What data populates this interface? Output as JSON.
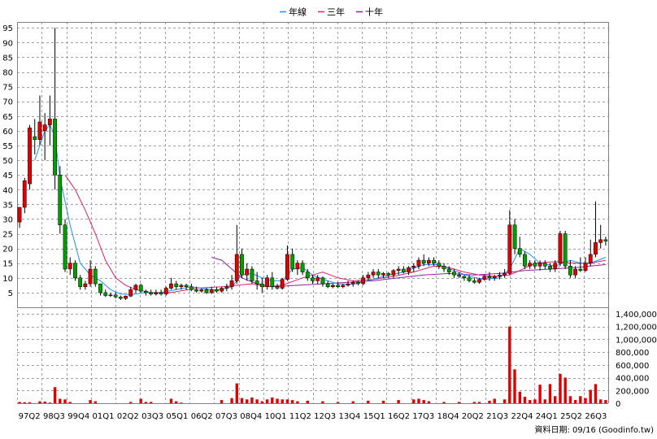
{
  "chart_data": {
    "type": "candlestick",
    "legend": [
      {
        "label": "年線",
        "color": "#1e90ff"
      },
      {
        "label": "三年",
        "color": "#e0206a"
      },
      {
        "label": "十年",
        "color": "#9020a0"
      }
    ],
    "legend_position": "top-center",
    "grid": true,
    "price_axis": {
      "ylim": [
        0,
        97
      ],
      "ticks": [
        5,
        10,
        15,
        20,
        25,
        30,
        35,
        40,
        45,
        50,
        55,
        60,
        65,
        70,
        75,
        80,
        85,
        90,
        95
      ]
    },
    "volume_axis": {
      "ylim": [
        0,
        1500000
      ],
      "ticks": [
        0,
        200000,
        400000,
        600000,
        800000,
        1000000,
        1200000,
        1400000
      ],
      "tick_labels": [
        "0",
        "200,000",
        "400,000",
        "600,000",
        "800,000",
        "1,000,000",
        "1,200,000",
        "1,400,000"
      ]
    },
    "x_labels": [
      "97Q2",
      "98Q3",
      "99Q4",
      "01Q1",
      "02Q2",
      "03Q3",
      "05Q1",
      "06Q2",
      "07Q3",
      "08Q4",
      "10Q1",
      "11Q2",
      "12Q3",
      "13Q4",
      "15Q1",
      "16Q2",
      "17Q3",
      "18Q4",
      "20Q2",
      "21Q3",
      "22Q4",
      "24Q1",
      "25Q2",
      "26Q3"
    ],
    "n_periods": 117,
    "candles": [
      [
        0,
        29,
        34,
        27,
        34
      ],
      [
        1,
        34,
        44,
        32,
        43
      ],
      [
        2,
        42,
        62,
        40,
        61
      ],
      [
        3,
        58,
        64,
        52,
        57
      ],
      [
        4,
        57,
        72,
        55,
        63
      ],
      [
        5,
        60,
        66,
        50,
        62
      ],
      [
        6,
        62,
        72,
        55,
        64
      ],
      [
        7,
        64,
        95,
        40,
        45
      ],
      [
        8,
        45,
        48,
        25,
        28
      ],
      [
        9,
        28,
        30,
        12,
        13
      ],
      [
        10,
        13,
        17,
        11,
        15
      ],
      [
        11,
        15,
        16,
        9,
        10
      ],
      [
        12,
        10,
        11,
        6,
        7
      ],
      [
        13,
        7,
        9,
        6,
        8
      ],
      [
        14,
        8,
        16,
        7,
        13
      ],
      [
        15,
        13,
        14,
        7,
        8
      ],
      [
        16,
        8,
        8,
        4,
        5
      ],
      [
        17,
        5,
        6,
        3.5,
        4
      ],
      [
        18,
        4,
        5,
        3.5,
        4.2
      ],
      [
        19,
        4.2,
        5,
        3,
        3.5
      ],
      [
        20,
        3.5,
        4,
        2.5,
        3
      ],
      [
        21,
        3,
        4,
        2.5,
        3.8
      ],
      [
        22,
        3.8,
        7,
        3.5,
        6
      ],
      [
        23,
        6,
        8,
        5,
        7.5
      ],
      [
        24,
        7.5,
        8,
        5,
        5.5
      ],
      [
        25,
        5.5,
        6,
        4,
        5
      ],
      [
        26,
        5,
        6,
        4,
        4.5
      ],
      [
        27,
        4.5,
        6,
        4,
        5
      ],
      [
        28,
        5,
        6,
        4,
        4.5
      ],
      [
        29,
        4.5,
        7,
        4,
        6.5
      ],
      [
        30,
        6.5,
        10,
        6,
        8
      ],
      [
        31,
        8,
        9,
        6,
        7
      ],
      [
        32,
        7,
        8,
        6,
        7.5
      ],
      [
        33,
        7.5,
        8,
        6,
        7
      ],
      [
        34,
        7,
        8,
        5.5,
        6
      ],
      [
        35,
        6,
        7,
        5,
        5.5
      ],
      [
        36,
        5.5,
        6.5,
        5,
        6
      ],
      [
        37,
        6,
        6.5,
        4.5,
        5
      ],
      [
        38,
        5,
        7,
        4.5,
        6
      ],
      [
        39,
        6,
        7,
        5,
        5.5
      ],
      [
        40,
        5.5,
        7,
        5,
        6.5
      ],
      [
        41,
        6.5,
        8,
        5.5,
        7
      ],
      [
        42,
        7,
        11,
        6,
        9
      ],
      [
        43,
        9,
        28,
        8,
        18
      ],
      [
        44,
        18,
        20,
        10,
        11
      ],
      [
        45,
        11,
        15,
        9,
        13
      ],
      [
        46,
        13,
        14,
        8,
        9
      ],
      [
        47,
        9,
        12,
        6,
        8
      ],
      [
        48,
        8,
        10,
        5,
        7
      ],
      [
        49,
        7,
        11,
        6,
        10
      ],
      [
        50,
        10,
        12,
        6,
        7
      ],
      [
        51,
        7,
        8,
        6,
        6.5
      ],
      [
        52,
        6.5,
        10,
        6,
        9.5
      ],
      [
        53,
        9.5,
        21,
        9,
        18
      ],
      [
        54,
        18,
        20,
        12,
        13
      ],
      [
        55,
        13,
        16,
        11,
        15
      ],
      [
        56,
        15,
        16,
        11,
        12
      ],
      [
        57,
        12,
        13,
        9,
        10
      ],
      [
        58,
        10,
        11,
        8,
        9
      ],
      [
        59,
        9,
        11,
        8,
        10
      ],
      [
        60,
        10,
        10.5,
        7,
        8
      ],
      [
        61,
        8,
        9,
        6.5,
        7
      ],
      [
        62,
        7,
        8,
        6.5,
        7.5
      ],
      [
        63,
        7.5,
        8.5,
        6.5,
        7
      ],
      [
        64,
        7,
        8,
        6.5,
        7.5
      ],
      [
        65,
        7.5,
        9,
        7,
        8
      ],
      [
        66,
        8,
        9,
        7,
        8.5
      ],
      [
        67,
        8.5,
        9,
        7.5,
        8
      ],
      [
        68,
        8,
        11,
        7.5,
        10
      ],
      [
        69,
        10,
        12,
        9,
        11
      ],
      [
        70,
        11,
        13,
        10,
        12
      ],
      [
        71,
        12,
        13,
        10,
        11
      ],
      [
        72,
        11,
        12,
        10,
        11.5
      ],
      [
        73,
        11.5,
        12,
        10,
        11
      ],
      [
        74,
        11,
        13,
        10,
        12.5
      ],
      [
        75,
        12.5,
        14,
        11,
        13
      ],
      [
        76,
        13,
        14,
        11.5,
        12
      ],
      [
        77,
        12,
        14,
        11,
        13.5
      ],
      [
        78,
        13.5,
        15,
        12,
        14
      ],
      [
        79,
        14,
        17,
        13,
        16
      ],
      [
        80,
        16,
        18,
        14,
        15
      ],
      [
        81,
        15,
        17,
        14,
        16
      ],
      [
        82,
        16,
        17,
        14,
        15
      ],
      [
        83,
        15,
        16,
        13,
        14
      ],
      [
        84,
        14,
        15,
        12,
        13
      ],
      [
        85,
        13,
        14,
        11,
        12
      ],
      [
        86,
        12,
        13,
        10,
        11
      ],
      [
        87,
        11,
        12,
        10,
        10.5
      ],
      [
        88,
        10.5,
        11,
        9,
        10
      ],
      [
        89,
        10,
        11,
        8.5,
        9
      ],
      [
        90,
        9,
        10,
        8,
        8.5
      ],
      [
        91,
        8.5,
        10,
        8,
        9.5
      ],
      [
        92,
        9.5,
        11,
        9,
        10.5
      ],
      [
        93,
        10.5,
        12,
        9,
        10
      ],
      [
        94,
        10,
        11,
        9,
        10.5
      ],
      [
        95,
        10.5,
        12,
        9.5,
        11
      ],
      [
        96,
        11,
        13,
        10,
        11.5
      ],
      [
        97,
        11.5,
        33,
        11,
        28
      ],
      [
        98,
        28,
        30,
        18,
        20
      ],
      [
        99,
        20,
        24,
        17,
        18
      ],
      [
        100,
        18,
        19,
        13,
        14
      ],
      [
        101,
        14,
        16,
        13,
        15
      ],
      [
        102,
        15,
        16,
        13,
        14
      ],
      [
        103,
        14,
        16,
        12.5,
        15
      ],
      [
        104,
        15,
        16,
        13,
        14
      ],
      [
        105,
        14,
        15,
        12,
        13
      ],
      [
        106,
        13,
        16,
        12,
        15
      ],
      [
        107,
        15,
        26,
        14,
        25
      ],
      [
        108,
        25,
        26,
        13,
        14
      ],
      [
        109,
        14,
        16,
        10,
        11
      ],
      [
        110,
        11,
        14,
        10,
        13
      ],
      [
        111,
        13,
        17,
        12,
        12.5
      ],
      [
        112,
        12.5,
        17,
        12,
        15
      ],
      [
        113,
        15,
        23,
        14,
        18
      ],
      [
        114,
        18,
        36,
        17,
        22
      ],
      [
        115,
        22,
        28,
        20,
        23
      ],
      [
        116,
        23,
        24,
        21,
        22.5
      ]
    ],
    "ma_1y": [
      [
        3,
        50
      ],
      [
        5,
        60
      ],
      [
        6,
        62
      ],
      [
        7,
        58
      ],
      [
        8,
        44
      ],
      [
        10,
        28
      ],
      [
        12,
        15
      ],
      [
        14,
        11
      ],
      [
        16,
        9
      ],
      [
        18,
        6
      ],
      [
        20,
        4.5
      ],
      [
        22,
        4.3
      ],
      [
        25,
        5
      ],
      [
        28,
        5
      ],
      [
        31,
        6
      ],
      [
        34,
        7
      ],
      [
        38,
        6
      ],
      [
        40,
        6
      ],
      [
        42,
        7
      ],
      [
        44,
        11
      ],
      [
        46,
        11.5
      ],
      [
        48,
        10
      ],
      [
        50,
        9
      ],
      [
        52,
        9
      ],
      [
        54,
        13
      ],
      [
        56,
        13.5
      ],
      [
        58,
        11
      ],
      [
        60,
        9.5
      ],
      [
        63,
        8
      ],
      [
        66,
        7.8
      ],
      [
        69,
        9
      ],
      [
        72,
        10.5
      ],
      [
        76,
        12
      ],
      [
        80,
        14.5
      ],
      [
        83,
        14.5
      ],
      [
        86,
        12.5
      ],
      [
        89,
        10.5
      ],
      [
        92,
        9.5
      ],
      [
        95,
        10
      ],
      [
        97,
        13
      ],
      [
        99,
        20
      ],
      [
        101,
        18
      ],
      [
        103,
        15
      ],
      [
        106,
        14
      ],
      [
        109,
        16
      ],
      [
        111,
        15
      ],
      [
        113,
        15
      ],
      [
        116,
        17
      ]
    ],
    "ma_3y": [
      [
        9,
        45
      ],
      [
        11,
        40
      ],
      [
        13,
        33
      ],
      [
        15,
        25
      ],
      [
        17,
        16
      ],
      [
        19,
        10
      ],
      [
        21,
        7.5
      ],
      [
        23,
        6
      ],
      [
        26,
        5
      ],
      [
        30,
        5
      ],
      [
        35,
        6.5
      ],
      [
        40,
        7
      ],
      [
        43,
        7.5
      ],
      [
        46,
        8
      ],
      [
        49,
        7
      ],
      [
        52,
        7.5
      ],
      [
        56,
        10
      ],
      [
        60,
        12
      ],
      [
        63,
        10
      ],
      [
        66,
        9
      ],
      [
        70,
        9.5
      ],
      [
        74,
        10.5
      ],
      [
        78,
        12
      ],
      [
        82,
        14
      ],
      [
        85,
        13.5
      ],
      [
        88,
        12
      ],
      [
        91,
        11
      ],
      [
        94,
        10.5
      ],
      [
        97,
        11
      ],
      [
        99,
        12.5
      ],
      [
        102,
        15
      ],
      [
        106,
        15.5
      ],
      [
        110,
        15
      ],
      [
        113,
        15
      ],
      [
        116,
        16
      ]
    ],
    "ma_10y": [
      [
        38,
        17
      ],
      [
        40,
        16
      ],
      [
        42,
        13
      ],
      [
        44,
        10
      ],
      [
        47,
        8
      ],
      [
        50,
        7
      ],
      [
        55,
        7.5
      ],
      [
        60,
        8
      ],
      [
        65,
        8.5
      ],
      [
        70,
        9
      ],
      [
        75,
        10
      ],
      [
        80,
        11
      ],
      [
        85,
        11.5
      ],
      [
        90,
        11
      ],
      [
        95,
        11.5
      ],
      [
        100,
        12.5
      ],
      [
        105,
        13
      ],
      [
        110,
        13.5
      ],
      [
        113,
        14
      ],
      [
        116,
        14.5
      ]
    ],
    "volume": [
      [
        0,
        20000
      ],
      [
        1,
        15000
      ],
      [
        2,
        15000
      ],
      [
        4,
        30000
      ],
      [
        5,
        25000
      ],
      [
        6,
        10000
      ],
      [
        7,
        250000
      ],
      [
        8,
        70000
      ],
      [
        9,
        60000
      ],
      [
        10,
        20000
      ],
      [
        14,
        50000
      ],
      [
        15,
        30000
      ],
      [
        22,
        20000
      ],
      [
        24,
        70000
      ],
      [
        25,
        20000
      ],
      [
        26,
        20000
      ],
      [
        30,
        70000
      ],
      [
        31,
        30000
      ],
      [
        32,
        10000
      ],
      [
        40,
        50000
      ],
      [
        42,
        80000
      ],
      [
        43,
        310000
      ],
      [
        44,
        80000
      ],
      [
        45,
        60000
      ],
      [
        46,
        90000
      ],
      [
        47,
        60000
      ],
      [
        48,
        30000
      ],
      [
        49,
        60000
      ],
      [
        50,
        90000
      ],
      [
        51,
        70000
      ],
      [
        52,
        60000
      ],
      [
        53,
        60000
      ],
      [
        54,
        50000
      ],
      [
        55,
        30000
      ],
      [
        57,
        40000
      ],
      [
        60,
        30000
      ],
      [
        63,
        20000
      ],
      [
        66,
        30000
      ],
      [
        69,
        40000
      ],
      [
        72,
        40000
      ],
      [
        75,
        50000
      ],
      [
        78,
        60000
      ],
      [
        79,
        70000
      ],
      [
        80,
        50000
      ],
      [
        81,
        30000
      ],
      [
        84,
        20000
      ],
      [
        87,
        20000
      ],
      [
        90,
        20000
      ],
      [
        91,
        20000
      ],
      [
        93,
        40000
      ],
      [
        94,
        70000
      ],
      [
        96,
        60000
      ],
      [
        97,
        1200000
      ],
      [
        98,
        530000
      ],
      [
        99,
        180000
      ],
      [
        100,
        100000
      ],
      [
        101,
        50000
      ],
      [
        102,
        60000
      ],
      [
        103,
        290000
      ],
      [
        104,
        60000
      ],
      [
        105,
        300000
      ],
      [
        106,
        110000
      ],
      [
        107,
        460000
      ],
      [
        108,
        400000
      ],
      [
        109,
        110000
      ],
      [
        110,
        50000
      ],
      [
        111,
        110000
      ],
      [
        112,
        80000
      ],
      [
        113,
        210000
      ],
      [
        114,
        300000
      ],
      [
        115,
        60000
      ],
      [
        116,
        50000
      ]
    ]
  },
  "footer": {
    "text": "資料日期: 09/16  (Goodinfo.tw)"
  }
}
